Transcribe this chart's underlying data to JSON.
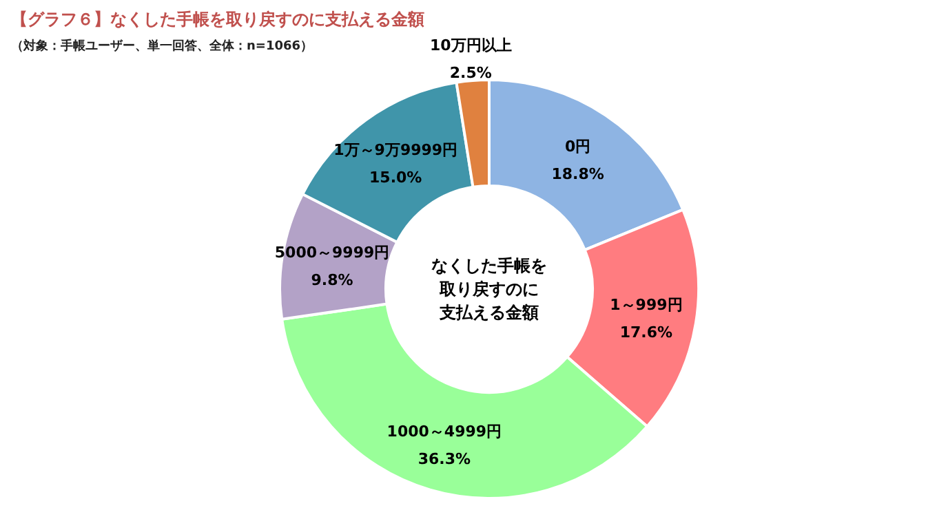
{
  "chart_data": {
    "type": "donut",
    "title": "【グラフ６】なくした手帳を取り戻すのに支払える金額",
    "subtitle": "（対象：手帳ユーザー、単一回答、全体：n=1066）",
    "categories": [
      "0円",
      "1～999円",
      "1000～4999円",
      "5000～9999円",
      "1万～9万9999円",
      "10万円以上"
    ],
    "values": [
      18.8,
      17.6,
      36.3,
      9.8,
      15.0,
      2.5
    ],
    "colors": [
      "#8eb4e3",
      "#ff7c80",
      "#99ff99",
      "#b3a2c7",
      "#4095aa",
      "#e0813f"
    ],
    "value_labels": [
      "18.8%",
      "17.6%",
      "36.3%",
      "9.8%",
      "15.0%",
      "2.5%"
    ],
    "annotations": [
      "なくした手帳を",
      "取り戻すのに",
      "支払える金額"
    ]
  }
}
